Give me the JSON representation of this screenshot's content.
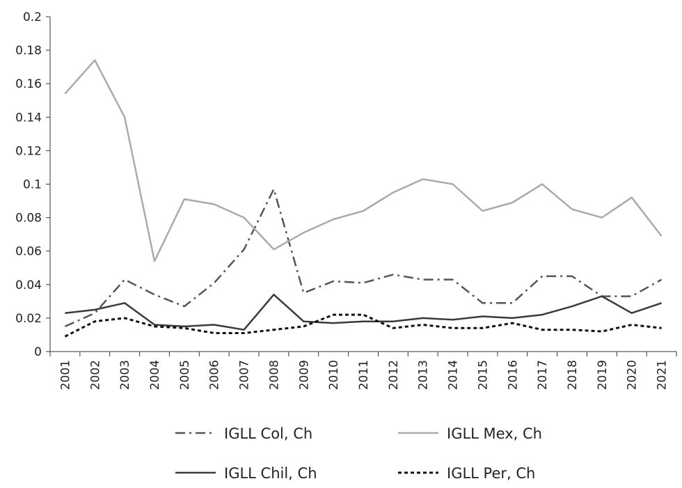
{
  "chart_data": {
    "type": "line",
    "title": "",
    "xlabel": "",
    "ylabel": "",
    "ylim": [
      0,
      0.2
    ],
    "yticks": [
      "0",
      "0.02",
      "0.04",
      "0.06",
      "0.08",
      "0.1",
      "0.12",
      "0.14",
      "0.16",
      "0.18",
      "0.2"
    ],
    "categories": [
      "2001",
      "2002",
      "2003",
      "2004",
      "2005",
      "2006",
      "2007",
      "2008",
      "2009",
      "2010",
      "2011",
      "2012",
      "2013",
      "2014",
      "2015",
      "2016",
      "2017",
      "2018",
      "2019",
      "2020",
      "2021"
    ],
    "legend_position": "bottom",
    "series": [
      {
        "name": "IGLL Col, Ch",
        "color": "#555555",
        "style": "dashdot",
        "values": [
          0.015,
          0.023,
          0.043,
          0.034,
          0.027,
          0.041,
          0.061,
          0.097,
          0.035,
          0.042,
          0.041,
          0.046,
          0.043,
          0.043,
          0.029,
          0.029,
          0.045,
          0.045,
          0.033,
          0.033,
          0.043
        ]
      },
      {
        "name": "IGLL Mex, Ch",
        "color": "#aaaaaa",
        "style": "solid",
        "values": [
          0.154,
          0.174,
          0.14,
          0.054,
          0.091,
          0.088,
          0.08,
          0.061,
          0.071,
          0.079,
          0.084,
          0.095,
          0.103,
          0.1,
          0.084,
          0.089,
          0.1,
          0.085,
          0.08,
          0.092,
          0.069
        ]
      },
      {
        "name": "IGLL Chil, Ch",
        "color": "#3a3a3a",
        "style": "solid",
        "values": [
          0.023,
          0.025,
          0.029,
          0.016,
          0.015,
          0.016,
          0.013,
          0.034,
          0.018,
          0.017,
          0.018,
          0.018,
          0.02,
          0.019,
          0.021,
          0.02,
          0.022,
          0.027,
          0.033,
          0.023,
          0.029
        ]
      },
      {
        "name": "IGLL Per, Ch",
        "color": "#111111",
        "style": "dotted",
        "values": [
          0.009,
          0.018,
          0.02,
          0.015,
          0.014,
          0.011,
          0.011,
          0.013,
          0.015,
          0.022,
          0.022,
          0.014,
          0.016,
          0.014,
          0.014,
          0.017,
          0.013,
          0.013,
          0.012,
          0.016,
          0.014
        ]
      }
    ]
  }
}
